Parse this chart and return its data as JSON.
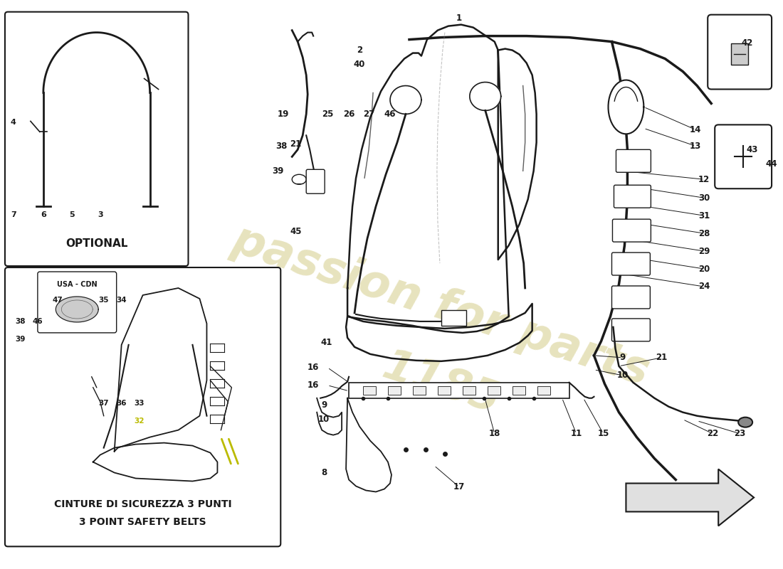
{
  "bg_color": "#ffffff",
  "line_color": "#1a1a1a",
  "watermark1": "passion for parts",
  "watermark2": "1185",
  "wm_color": "#d4cc88",
  "wm_alpha": 0.55,
  "title": "",
  "optional_label": "OPTIONAL",
  "belt_label1": "CINTURE DI SICUREZZA 3 PUNTI",
  "belt_label2": "3 POINT SAFETY BELTS",
  "usa_cdn_label": "USA - CDN"
}
